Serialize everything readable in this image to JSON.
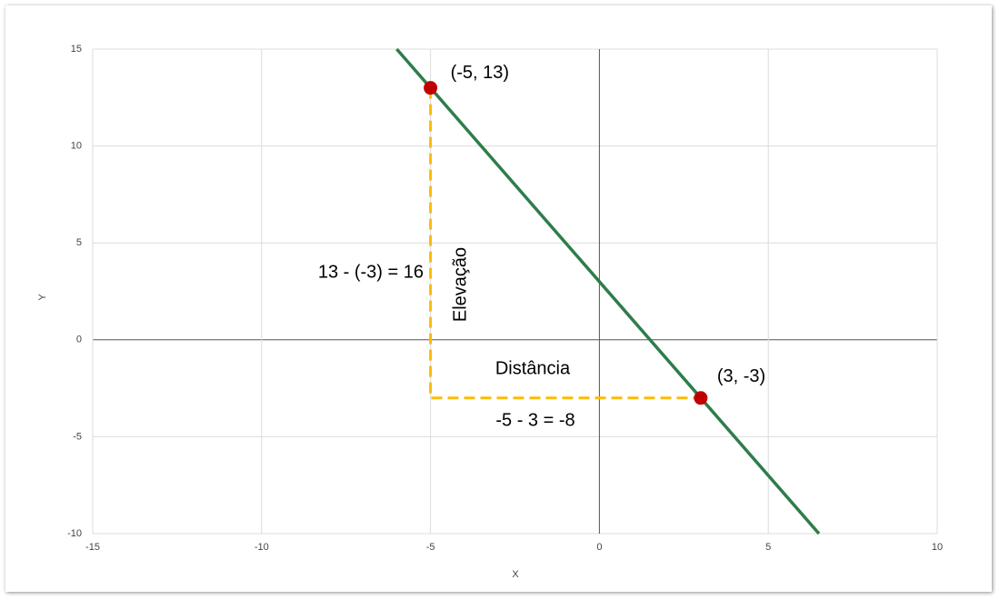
{
  "chart_data": {
    "type": "line",
    "x_label": "X",
    "y_label": "Y",
    "xlim": [
      -15,
      10
    ],
    "ylim": [
      -10,
      15
    ],
    "xticks": [
      -15,
      -10,
      -5,
      0,
      5,
      10
    ],
    "yticks": [
      -10,
      -5,
      0,
      5,
      10,
      15
    ],
    "grid": true,
    "line": {
      "x": [
        -6,
        6.5
      ],
      "y": [
        15,
        -10
      ],
      "color": "#2e7d4a"
    },
    "guide": {
      "x": [
        -5,
        -5,
        3
      ],
      "y": [
        13,
        -3,
        -3
      ],
      "color": "#fbbc04"
    },
    "points": {
      "x": [
        -5,
        3
      ],
      "y": [
        13,
        -3
      ],
      "color": "#c00000",
      "labels": [
        "(-5, 13)",
        "(3, -3)"
      ]
    },
    "annotations": [
      "13 - (-3) = 16",
      "Elevação",
      "Distância",
      "-5 - 3 = -8"
    ]
  }
}
